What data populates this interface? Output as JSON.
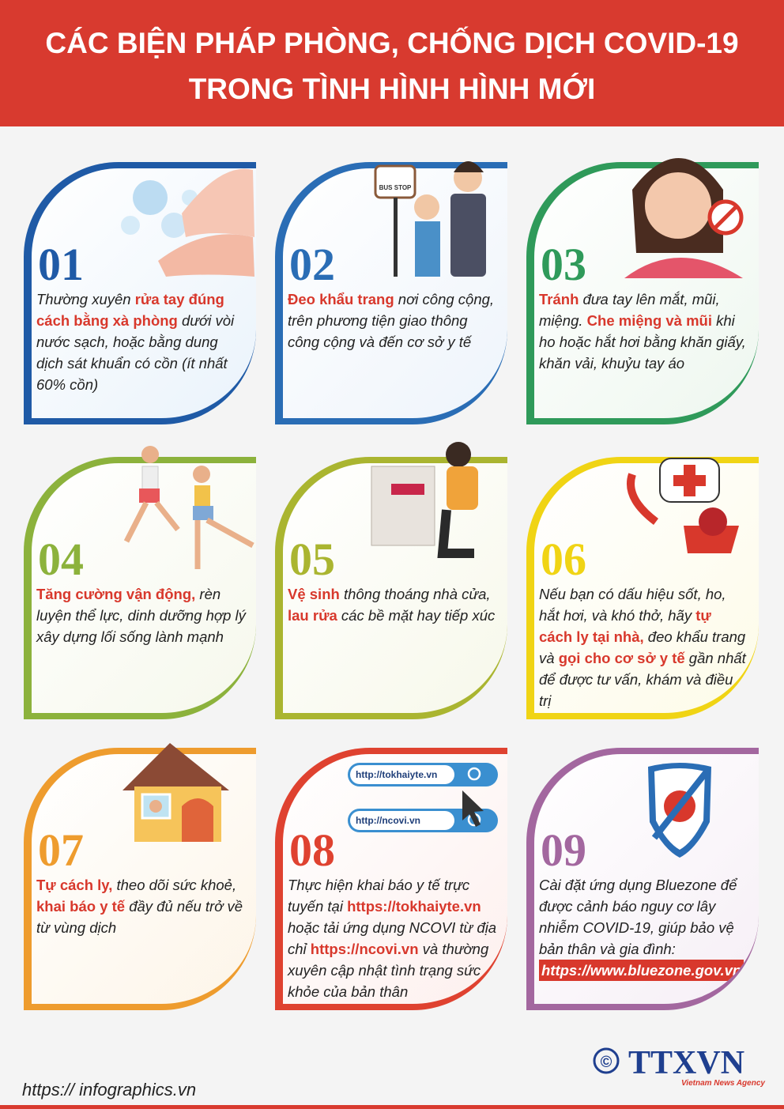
{
  "header": {
    "title_lines": [
      "CÁC BIỆN PHÁP PHÒNG, CHỐNG DỊCH COVID-19",
      "TRONG TÌNH HÌNH HÌNH MỚI"
    ]
  },
  "cards": [
    {
      "number": "01",
      "color": "#1f5aa6",
      "bg": "#eaf3fb",
      "segments": [
        {
          "text": "Thường xuyên ",
          "style": "plain"
        },
        {
          "text": "rửa tay đúng cách bằng xà phòng",
          "style": "em"
        },
        {
          "text": " dưới vòi nước sạch, hoặc bằng dung dịch sát khuẩn có cồn (ít nhất 60% cồn)",
          "style": "plain"
        }
      ]
    },
    {
      "number": "02",
      "color": "#2a6db5",
      "bg": "#eef4fb",
      "segments": [
        {
          "text": "Đeo khẩu trang",
          "style": "em"
        },
        {
          "text": " nơi công cộng, trên phương tiện giao thông công cộng và đến cơ sở y tế",
          "style": "plain"
        }
      ]
    },
    {
      "number": "03",
      "color": "#2f9a5a",
      "bg": "#eef7ef",
      "segments": [
        {
          "text": "Tránh",
          "style": "em"
        },
        {
          "text": " đưa tay lên mắt, mũi, miệng. ",
          "style": "plain"
        },
        {
          "text": "Che miệng và mũi",
          "style": "em"
        },
        {
          "text": " khi ho hoặc hắt hơi bằng khăn giấy, khăn vải, khuỷu tay áo",
          "style": "plain"
        }
      ]
    },
    {
      "number": "04",
      "color": "#8cb23c",
      "bg": "#f6f8ec",
      "segments": [
        {
          "text": "Tăng cường vận động,",
          "style": "em"
        },
        {
          "text": " rèn luyện thể lực, dinh dưỡng hợp lý xây dựng lối sống lành mạnh",
          "style": "plain"
        }
      ]
    },
    {
      "number": "05",
      "color": "#aab530",
      "bg": "#f7f8ea",
      "segments": [
        {
          "text": "Vệ sinh",
          "style": "em"
        },
        {
          "text": " thông thoáng nhà cửa, ",
          "style": "plain"
        },
        {
          "text": "lau rửa",
          "style": "em"
        },
        {
          "text": " các bề mặt hay tiếp xúc",
          "style": "plain"
        }
      ]
    },
    {
      "number": "06",
      "color": "#f0d414",
      "bg": "#fdfbe8",
      "segments": [
        {
          "text": "Nếu bạn có dấu hiệu sốt, ho, hắt hơi, và khó thở, hãy ",
          "style": "plain"
        },
        {
          "text": "tự cách ly tại  nhà,",
          "style": "em"
        },
        {
          "text": " đeo khẩu trang và ",
          "style": "plain"
        },
        {
          "text": "gọi cho cơ sở y tế",
          "style": "em"
        },
        {
          "text": " gần nhất để được tư vấn, khám và điều trị",
          "style": "plain"
        }
      ]
    },
    {
      "number": "07",
      "color": "#ee9c2e",
      "bg": "#fdf5e8",
      "segments": [
        {
          "text": "Tự cách ly,",
          "style": "em"
        },
        {
          "text": " theo dõi sức khoẻ, ",
          "style": "plain"
        },
        {
          "text": "khai báo y tế",
          "style": "em"
        },
        {
          "text": " đầy đủ nếu trở về từ vùng dịch",
          "style": "plain"
        }
      ]
    },
    {
      "number": "08",
      "color": "#df4230",
      "bg": "#fdf0ee",
      "segments": [
        {
          "text": "Thực hiện khai báo y tế trực tuyến tại ",
          "style": "plain"
        },
        {
          "text": "https://tokhaiyte.vn",
          "style": "em"
        },
        {
          "text": " hoặc tải ứng dụng NCOVI từ địa chỉ ",
          "style": "plain"
        },
        {
          "text": "https://ncovi.vn",
          "style": "em"
        },
        {
          "text": " và thường xuyên cập nhật tình trạng sức khỏe của bản thân",
          "style": "plain"
        }
      ]
    },
    {
      "number": "09",
      "color": "#a3679f",
      "bg": "#f6eff6",
      "segments": [
        {
          "text": "Cài đặt ứng dụng Bluezone để được cảnh báo nguy cơ lây nhiễm COVID-19, giúp  bảo vệ bản thân và gia đình:",
          "style": "plain"
        },
        {
          "text": "https://www.bluezone.gov.vn",
          "style": "box"
        }
      ]
    }
  ],
  "illustrations": {
    "bus_stop": "BUS STOP",
    "search_1": "http://tokhaiyte.vn",
    "search_2": "http://ncovi.vn"
  },
  "footer": {
    "url": "https:// infographics.vn",
    "copyright": "©",
    "logo": "TTXVN",
    "agency": "Vietnam News Agency"
  }
}
